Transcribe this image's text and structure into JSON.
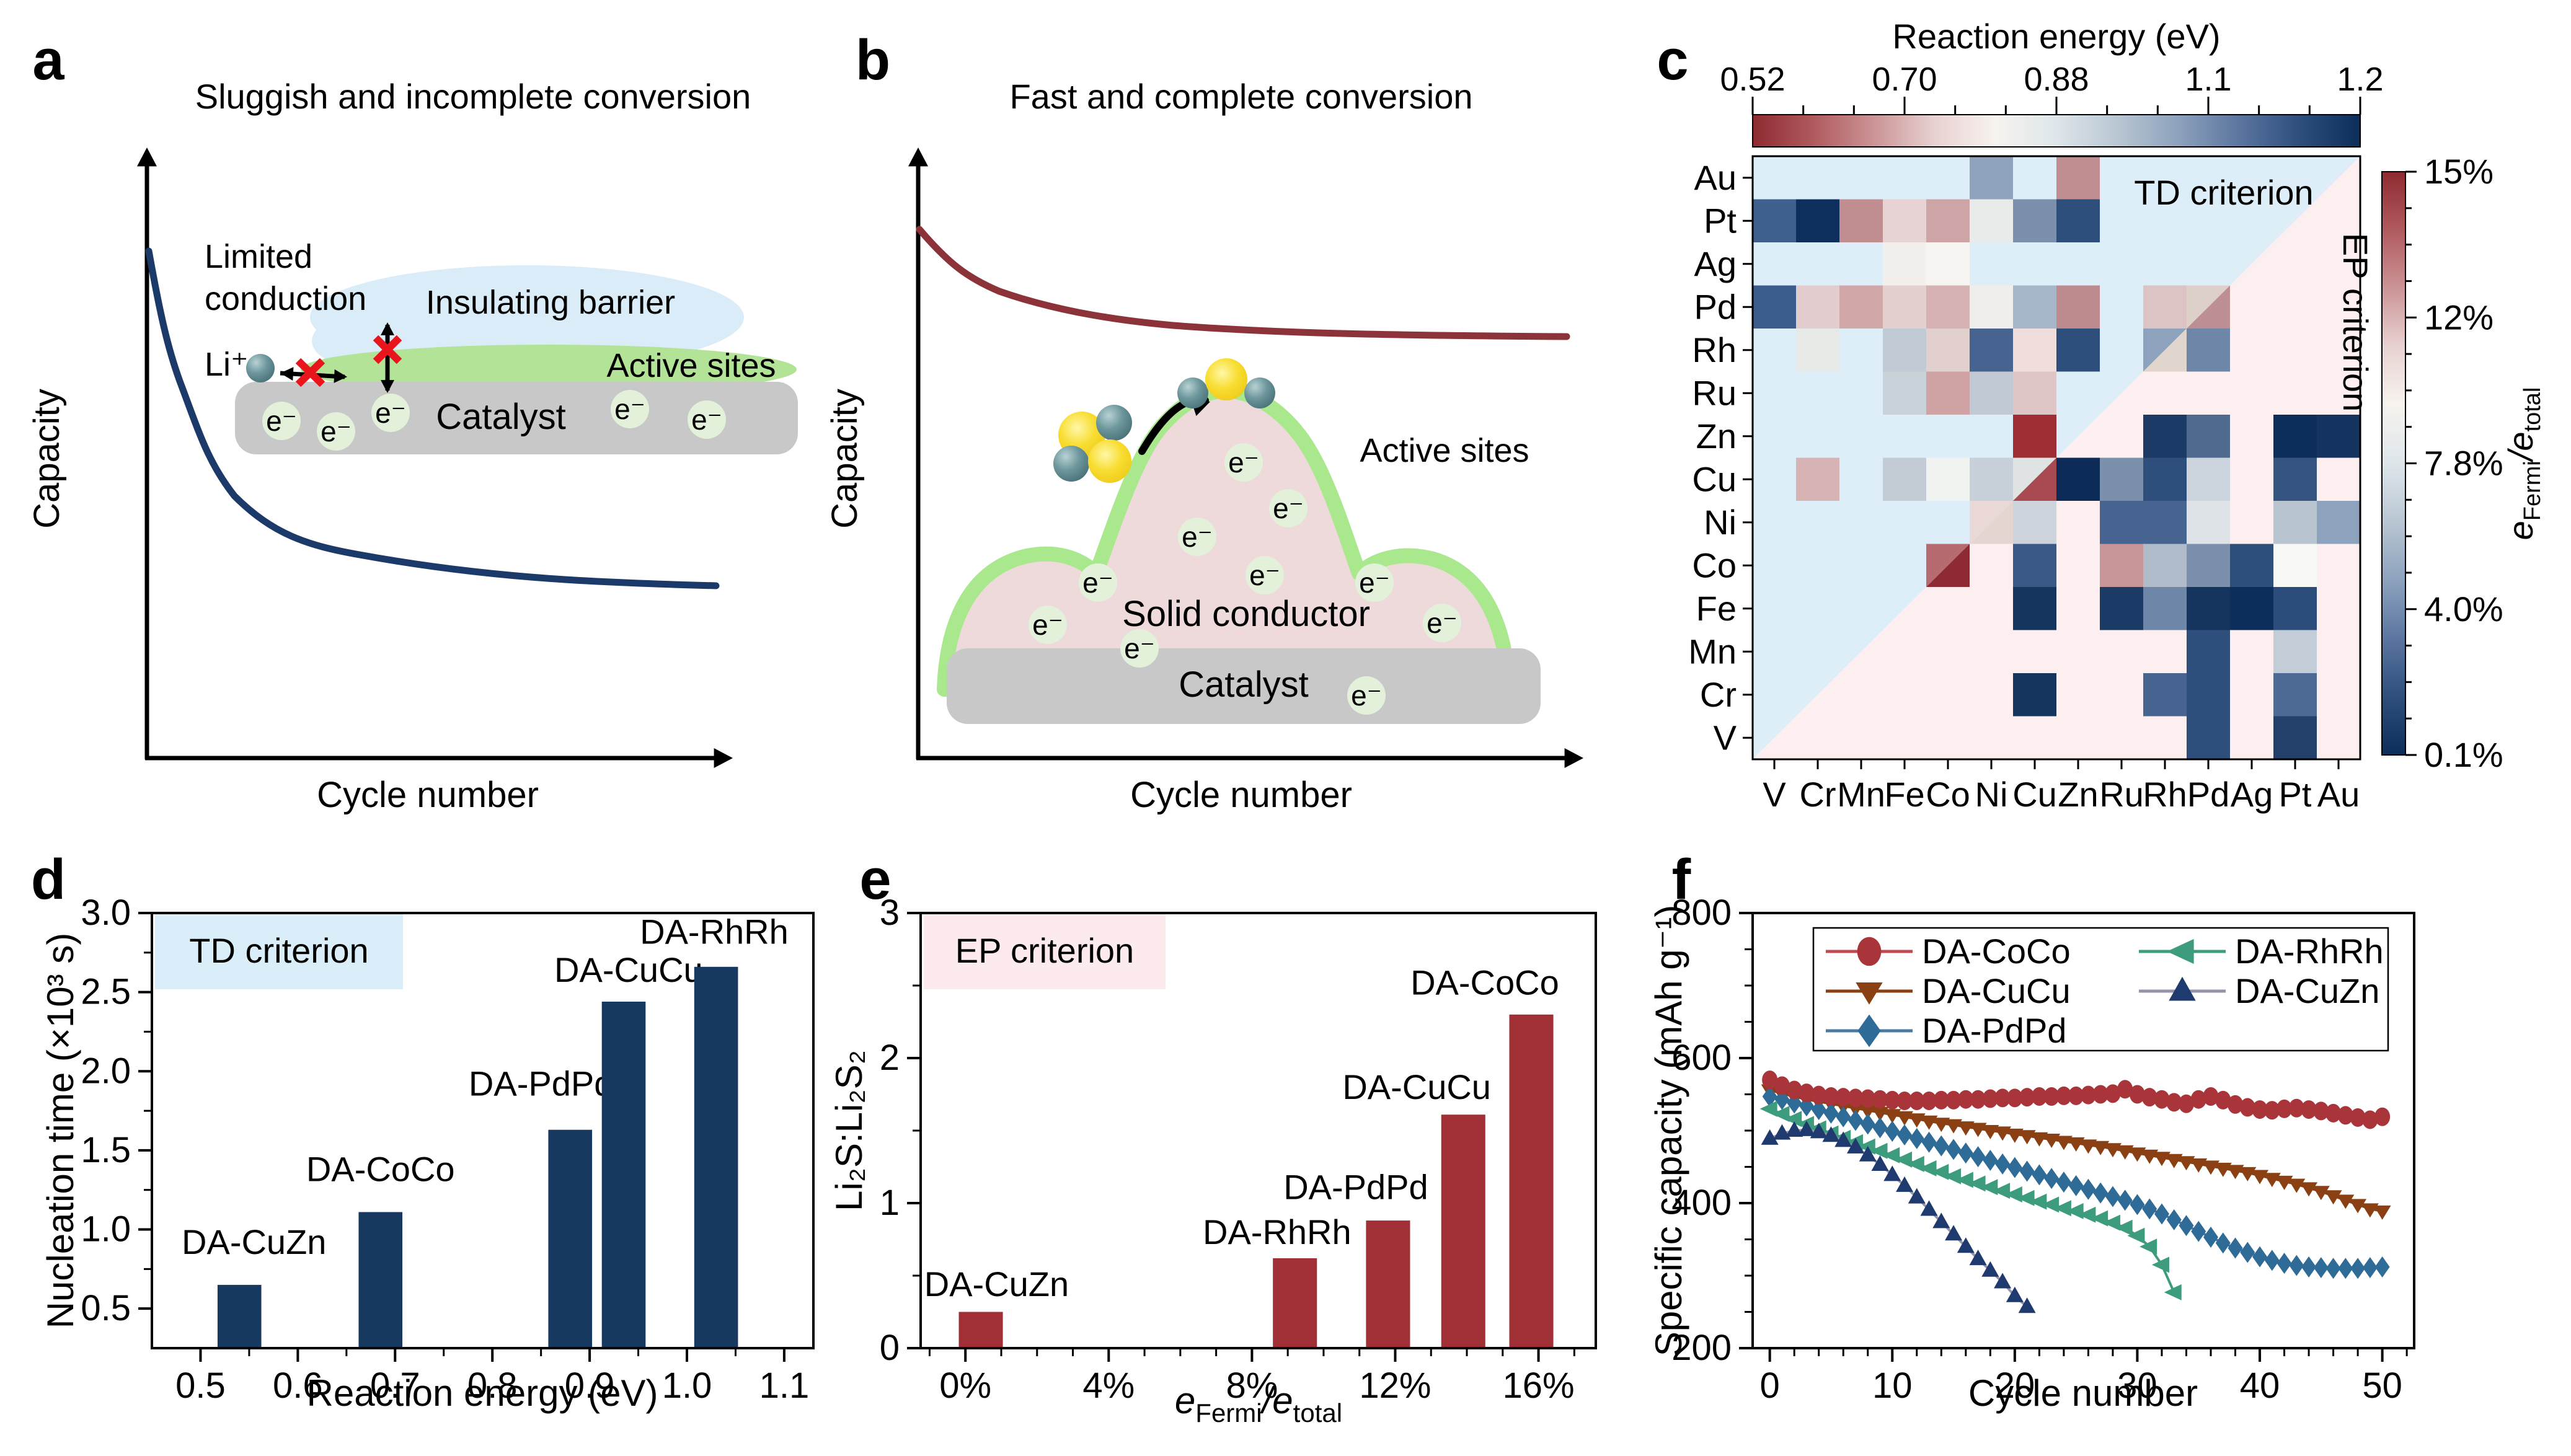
{
  "figure_labels": {
    "a": "a",
    "b": "b",
    "c": "c",
    "d": "d",
    "e": "e",
    "f": "f"
  },
  "panel_a": {
    "title": "Sluggish and incomplete conversion",
    "ylabel": "Capacity",
    "xlabel": "Cycle number",
    "curve_color": "#1b3a6a",
    "annotations": {
      "limited_conduction_line1": "Limited",
      "limited_conduction_line2": "conduction",
      "li_ion": "Li⁺",
      "insulating_barrier": "Insulating barrier",
      "active_sites": "Active sites",
      "catalyst": "Catalyst",
      "electron": "e⁻"
    },
    "colors": {
      "barrier_blob": "#d9ecf8",
      "active_layer": "#b2e397",
      "catalyst": "#c8c8c8",
      "electron_bg": "#e3f1da",
      "cross": "#e8151d"
    }
  },
  "panel_b": {
    "title": "Fast and complete conversion",
    "ylabel": "Capacity",
    "xlabel": "Cycle number",
    "curve_color": "#8b3338",
    "annotations": {
      "active_sites": "Active sites",
      "solid_conductor": "Solid conductor",
      "catalyst": "Catalyst",
      "electron": "e⁻"
    },
    "colors": {
      "dome_fill": "#eedada",
      "dome_edge": "#a9e88c",
      "catalyst": "#c8c8c8",
      "electron_bg": "#e3f1da",
      "sulfur": "#f5d832",
      "lithium": "#55828b"
    }
  },
  "panel_c": {
    "top_colorbar": {
      "title": "Reaction energy (eV)",
      "tick_labels": [
        "0.52",
        "0.70",
        "0.88",
        "1.1",
        "1.2"
      ]
    },
    "right_colorbar": {
      "tick_labels": [
        "15%",
        "12%",
        "7.8%",
        "4.0%",
        "0.1%"
      ],
      "label_parts": {
        "e1": "e",
        "sub1": "Fermi",
        "mid": "/e",
        "sub2": "total"
      }
    },
    "td_region_label": "TD criterion",
    "ep_region_label": "EP criterion"
  },
  "panel_d": {
    "region_label": "TD criterion",
    "region_box_color": "#daeef9",
    "xlabel": "Reaction energy (eV)",
    "ylabel": "Nucleation time (×10³ s)",
    "xtick_labels": [
      "0.5",
      "0.6",
      "0.7",
      "0.8",
      "0.9",
      "1.0",
      "1.1"
    ],
    "ytick_labels": [
      "0.5",
      "1.0",
      "1.5",
      "2.0",
      "2.5",
      "3.0"
    ]
  },
  "panel_e": {
    "region_label": "EP criterion",
    "region_box_color": "#fceaec",
    "xlabel_parts": {
      "e1": "e",
      "sub1": "Fermi",
      "mid": "/e",
      "sub2": "total"
    },
    "ylabel": "Li₂S:Li₂S₂",
    "xtick_labels": [
      "0%",
      "4%",
      "8%",
      "12%",
      "16%"
    ],
    "ytick_labels": [
      "0",
      "1",
      "2",
      "3"
    ]
  },
  "panel_f": {
    "xlabel": "Cycle number",
    "ylabel": "Specific capacity (mAh g⁻¹)",
    "xtick_labels": [
      "0",
      "10",
      "20",
      "30",
      "40",
      "50"
    ],
    "ytick_labels": [
      "200",
      "400",
      "600",
      "800"
    ]
  },
  "chart_data": [
    {
      "id": "c",
      "type": "heatmap",
      "title": "Reaction energy (eV)",
      "x_categories": [
        "V",
        "Cr",
        "Mn",
        "Fe",
        "Co",
        "Ni",
        "Cu",
        "Zn",
        "Ru",
        "Rh",
        "Pd",
        "Ag",
        "Pt",
        "Au"
      ],
      "y_categories": [
        "Au",
        "Pt",
        "Ag",
        "Pd",
        "Rh",
        "Ru",
        "Zn",
        "Cu",
        "Ni",
        "Co",
        "Fe",
        "Mn",
        "Cr",
        "V"
      ],
      "value_scale_top": {
        "label": "Reaction energy (eV)",
        "range": [
          0.52,
          1.2
        ],
        "ticks": [
          "0.52",
          "0.70",
          "0.88",
          "1.1",
          "1.2"
        ]
      },
      "value_scale_right": {
        "label": "eFermi/etotal",
        "ticks": [
          "15%",
          "12%",
          "7.8%",
          "4.0%",
          "0.1%"
        ]
      },
      "background_td": "#ddeef8",
      "background_ep": "#fdeef0",
      "colormap": [
        "#8e2a31",
        "#b05a5e",
        "#cb9496",
        "#e8d2d2",
        "#f7f3ef",
        "#dee6ea",
        "#b9c6d3",
        "#8da2bd",
        "#5b76a0",
        "#2e4e7c",
        "#0d2d5a"
      ],
      "cells": [
        [
          null,
          null,
          null,
          null,
          null,
          "#8fa3bd",
          null,
          "#c08d90",
          null,
          null,
          null,
          null,
          null,
          {
            "td": null,
            "ep": null
          }
        ],
        [
          "#3f5f8f",
          "#0e2f5e",
          "#c08d90",
          "#e7d3d3",
          "#cda5a7",
          "#e9ebea",
          "#7b90ad",
          "#2e4e7c",
          null,
          null,
          null,
          null,
          {
            "td": null,
            "ep": null
          },
          null
        ],
        [
          null,
          null,
          null,
          "#f2efec",
          "#f7f5f1",
          null,
          null,
          null,
          null,
          null,
          null,
          {
            "td": null,
            "ep": null
          },
          null,
          null
        ],
        [
          "#3b5c8c",
          "#e2cccd",
          "#d2a7a7",
          "#e5d0d0",
          "#d7b2b3",
          "#efeeea",
          "#a7b6c8",
          "#bd8a8e",
          null,
          "#dcc4c4",
          {
            "td": "#ddd0c8",
            "ep": "#bd8e92"
          },
          null,
          null,
          null
        ],
        [
          null,
          "#e7e9e7",
          null,
          "#c1cbd5",
          "#e2d0cf",
          "#46648f",
          "#f0dedd",
          "#2e4e7c",
          null,
          {
            "td": "#8da2bc",
            "ep": "#e0d6ce"
          },
          "#6e87a8",
          null,
          null,
          null
        ],
        [
          null,
          null,
          null,
          "#c9d1d9",
          "#cfa2a3",
          "#c1cad4",
          "#dfc5c5",
          null,
          {
            "td": null,
            "ep": null
          },
          null,
          null,
          null,
          null,
          null
        ],
        [
          null,
          null,
          null,
          null,
          null,
          null,
          "#9e2d34",
          {
            "td": null,
            "ep": null
          },
          null,
          "#1c3a66",
          "#50698f",
          null,
          "#0d2d5a",
          "#14335f"
        ],
        [
          null,
          "#d8b3b3",
          null,
          "#c3ccd5",
          "#f1f3f0",
          "#c8d0da",
          {
            "td": "#dfe3e3",
            "ep": "#a84a50"
          },
          "#0d2b57",
          "#7b90ad",
          "#2e4e7c",
          "#ccd5dd",
          null,
          "#35547f",
          null
        ],
        [
          null,
          null,
          null,
          null,
          null,
          {
            "td": "#e9d8d6",
            "ep": "#e5d5d1"
          },
          "#ccd3da",
          null,
          "#46648f",
          "#46648f",
          "#dde3e6",
          null,
          "#b8c4d0",
          "#8da2bc"
        ],
        [
          null,
          null,
          null,
          null,
          {
            "td": "#b56b6f",
            "ep": "#8e2a31"
          },
          null,
          "#3a5a85",
          null,
          "#c89598",
          "#b1bcca",
          "#7b90ad",
          "#2e4e7c",
          "#f8f8f4",
          null
        ],
        [
          null,
          null,
          null,
          {
            "td": null,
            "ep": null
          },
          null,
          null,
          "#16355e",
          null,
          "#1c3a66",
          "#6e87a8",
          "#16355e",
          "#0d2d5a",
          "#2c4d7c",
          null
        ],
        [
          null,
          null,
          {
            "td": null,
            "ep": null
          },
          null,
          null,
          null,
          null,
          null,
          null,
          null,
          "#2e4e7c",
          null,
          "#c3cdd8",
          null
        ],
        [
          null,
          {
            "td": null,
            "ep": null
          },
          null,
          null,
          null,
          null,
          "#16355e",
          null,
          null,
          "#46648f",
          "#2e4e7c",
          null,
          "#4c6a94",
          null
        ],
        [
          {
            "td": null,
            "ep": null
          },
          null,
          null,
          null,
          null,
          null,
          null,
          null,
          null,
          null,
          "#2e4e7c",
          null,
          "#23406b",
          null
        ]
      ]
    },
    {
      "id": "d",
      "type": "bar",
      "title": "TD criterion",
      "xlabel": "Reaction energy (eV)",
      "ylabel": "Nucleation time (×10³ s)",
      "xlim": [
        0.45,
        1.13
      ],
      "ylim": [
        0.25,
        3.0
      ],
      "xticks": [
        0.5,
        0.6,
        0.7,
        0.8,
        0.9,
        1.0,
        1.1
      ],
      "yticks": [
        0.5,
        1.0,
        1.5,
        2.0,
        2.5,
        3.0
      ],
      "bar_color": "#17395f",
      "bar_width": 0.045,
      "bars": [
        {
          "label": "DA-CuZn",
          "x": 0.54,
          "value": 0.65,
          "label_x": 0.555,
          "label_y": 0.92
        },
        {
          "label": "DA-CoCo",
          "x": 0.685,
          "value": 1.11,
          "label_x": 0.685,
          "label_y": 1.38
        },
        {
          "label": "DA-PdPd",
          "x": 0.88,
          "value": 1.63,
          "label_x": 0.85,
          "label_y": 1.92
        },
        {
          "label": "DA-CuCu",
          "x": 0.935,
          "value": 2.44,
          "label_x": 0.94,
          "label_y": 2.64
        },
        {
          "label": "DA-RhRh",
          "x": 1.03,
          "value": 2.66,
          "label_x": 1.028,
          "label_y": 2.88
        }
      ]
    },
    {
      "id": "e",
      "type": "bar",
      "title": "EP criterion",
      "xlabel": "eFermi/etotal",
      "ylabel": "Li₂S:Li₂S₂",
      "xlim": [
        -1.25,
        17.6
      ],
      "ylim": [
        0,
        3
      ],
      "xticks": [
        0,
        4,
        8,
        12,
        16
      ],
      "yticks": [
        0,
        1,
        2,
        3
      ],
      "bar_color": "#a03036",
      "bar_width": 1.23,
      "bars": [
        {
          "label": "DA-CuZn",
          "x": 0.43,
          "value": 0.25,
          "label_x": 0.87,
          "label_y": 0.44
        },
        {
          "label": "DA-RhRh",
          "x": 9.2,
          "value": 0.62,
          "label_x": 8.7,
          "label_y": 0.8
        },
        {
          "label": "DA-PdPd",
          "x": 11.8,
          "value": 0.88,
          "label_x": 10.9,
          "label_y": 1.11
        },
        {
          "label": "DA-CuCu",
          "x": 13.9,
          "value": 1.61,
          "label_x": 12.6,
          "label_y": 1.8
        },
        {
          "label": "DA-CoCo",
          "x": 15.8,
          "value": 2.3,
          "label_x": 14.5,
          "label_y": 2.52
        }
      ]
    },
    {
      "id": "f",
      "type": "line",
      "xlabel": "Cycle number",
      "ylabel": "Specific capacity (mAh g⁻¹)",
      "xlim": [
        -1.4,
        52.6
      ],
      "ylim": [
        200,
        800
      ],
      "xticks": [
        0,
        10,
        20,
        30,
        40,
        50
      ],
      "yticks": [
        200,
        400,
        600,
        800
      ],
      "series": [
        {
          "name": "DA-CuCu",
          "marker": "triangle-down",
          "marker_color": "#8a4012",
          "line_color": "#8a4012",
          "x_start": 0,
          "values": [
            556,
            551,
            547,
            543,
            540,
            537,
            534,
            531,
            528,
            525,
            522,
            519,
            516,
            513,
            510,
            508,
            505,
            503,
            500,
            498,
            495,
            493,
            490,
            488,
            485,
            483,
            480,
            478,
            475,
            472,
            469,
            466,
            463,
            460,
            457,
            454,
            451,
            448,
            445,
            442,
            438,
            434,
            430,
            426,
            421,
            416,
            410,
            404,
            398,
            392,
            389
          ]
        },
        {
          "name": "DA-PdPd",
          "marker": "diamond",
          "marker_color": "#2e6b96",
          "line_color": "#4a7ba3",
          "x_start": 0,
          "values": [
            547,
            543,
            538,
            534,
            529,
            524,
            519,
            514,
            509,
            504,
            499,
            494,
            489,
            484,
            479,
            474,
            469,
            464,
            459,
            454,
            449,
            444,
            439,
            434,
            429,
            424,
            419,
            414,
            409,
            404,
            398,
            392,
            385,
            377,
            369,
            361,
            353,
            345,
            338,
            332,
            326,
            321,
            317,
            314,
            312,
            311,
            310,
            310,
            310,
            311,
            312
          ]
        },
        {
          "name": "DA-RhRh",
          "marker": "triangle-left",
          "marker_color": "#3d9b7e",
          "line_color": "#3d9b7e",
          "x_start": 0,
          "values": [
            530,
            523,
            516,
            509,
            503,
            496,
            490,
            484,
            478,
            472,
            466,
            460,
            454,
            448,
            443,
            437,
            432,
            427,
            422,
            417,
            412,
            407,
            402,
            398,
            393,
            389,
            384,
            379,
            373,
            366,
            355,
            340,
            315,
            277
          ]
        },
        {
          "name": "DA-CuZn",
          "marker": "triangle-up",
          "marker_color": "#1e3a6e",
          "line_color": "#9494ab",
          "x_start": 0,
          "values": [
            489,
            496,
            500,
            501,
            498,
            493,
            486,
            477,
            466,
            453,
            439,
            424,
            408,
            391,
            374,
            357,
            340,
            323,
            307,
            291,
            272,
            257
          ]
        },
        {
          "name": "DA-CoCo",
          "marker": "circle",
          "marker_color": "#a93439",
          "line_color": "#bf4a50",
          "x_start": 0,
          "values": [
            570,
            562,
            556,
            552,
            549,
            547,
            546,
            545,
            544,
            543,
            542,
            541,
            541,
            541,
            542,
            542,
            543,
            543,
            544,
            545,
            545,
            546,
            547,
            547,
            548,
            548,
            549,
            550,
            551,
            557,
            550,
            546,
            543,
            539,
            537,
            543,
            547,
            542,
            536,
            532,
            529,
            528,
            530,
            531,
            529,
            527,
            524,
            521,
            518,
            515,
            519
          ]
        }
      ],
      "legend": {
        "column1": [
          "DA-CoCo",
          "DA-CuCu",
          "DA-PdPd"
        ],
        "column2": [
          "DA-RhRh",
          "DA-CuZn"
        ]
      }
    }
  ]
}
